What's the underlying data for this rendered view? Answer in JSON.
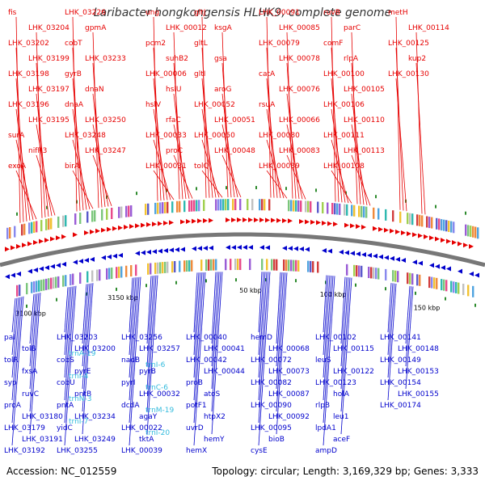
{
  "title": "Laribacter hongkongensis HLHK9, complete genome",
  "footer": {
    "accession": "Accession: NC_012559",
    "summary": "Topology: circular; Length: 3,169,329 bp; Genes: 3,333"
  },
  "colors": {
    "forward": "#e60000",
    "reverse": "#0000cc",
    "rna": "#33bbdd",
    "backbone": "#777777",
    "tick": "#2e8b2e"
  },
  "position_labels": [
    "3100 kbp",
    "3150 kbp",
    "50 kbp",
    "100 kbp",
    "150 kbp"
  ],
  "forward_genes": [
    "fis",
    "LHK_03204",
    "LHK_03202",
    "LHK_03199",
    "LHK_03198",
    "LHK_03197",
    "LHK_03196",
    "LHK_03195",
    "surA",
    "nifR3",
    "exoA",
    "LHK_03226",
    "gpmA",
    "cobT",
    "LHK_03233",
    "gyrB",
    "dnaN",
    "dnaA",
    "LHK_03250",
    "LHK_03248",
    "LHK_03247",
    "birA",
    "ung",
    "LHK_00012",
    "pcm2",
    "suhB2",
    "LHK_00006",
    "hslU",
    "hslV",
    "rfaC",
    "LHK_00033",
    "proC",
    "LHK_00031",
    "gltJ",
    "ksgA",
    "gltL",
    "gsa",
    "gltI",
    "aroG",
    "LHK_00052",
    "LHK_00051",
    "LHK_00050",
    "LHK_00048",
    "tolQ",
    "LHK_00091",
    "LHK_00085",
    "LHK_00079",
    "LHK_00078",
    "catA",
    "LHK_00076",
    "rsuA",
    "LHK_00066",
    "LHK_00080",
    "LHK_00083",
    "LHK_00089",
    "ruvB",
    "parC",
    "comF",
    "rlpA",
    "LHK_00100",
    "LHK_00105",
    "LHK_00106",
    "LHK_00110",
    "LHK_00111",
    "LHK_00113",
    "LHK_00108",
    "metH",
    "LHK_00114",
    "LHK_00125",
    "kup2",
    "LHK_00130"
  ],
  "reverse_genes": [
    "pal",
    "tolB",
    "tolR",
    "fxsA",
    "syp",
    "ruvC",
    "proA",
    "LHK_03180",
    "LHK_03179",
    "LHK_03191",
    "LHK_03192",
    "LHK_03203",
    "LHK_03200",
    "cobS",
    "pyrE",
    "cobU",
    "pntB",
    "pntA",
    "LHK_03234",
    "yidC",
    "LHK_03249",
    "LHK_03255",
    "LHK_03256",
    "LHK_03257",
    "nadB",
    "pyrB",
    "pyrI",
    "LHK_00032",
    "dcdA",
    "agaY",
    "LHK_00022",
    "tktA",
    "LHK_00039",
    "LHK_00040",
    "LHK_00041",
    "LHK_00042",
    "LHK_00044",
    "proB",
    "atoS",
    "potF1",
    "htpX2",
    "uvrD",
    "hemY",
    "hemX",
    "hemD",
    "LHK_00068",
    "LHK_00072",
    "LHK_00073",
    "LHK_00082",
    "LHK_00087",
    "LHK_00090",
    "LHK_00092",
    "LHK_00095",
    "bioB",
    "cysE",
    "LHK_00102",
    "LHK_00115",
    "leuS",
    "LHK_00122",
    "LHK_00123",
    "holA",
    "rlpB",
    "leu1",
    "lpdA1",
    "aceF",
    "ampD",
    "LHK_00141",
    "LHK_00148",
    "LHK_00149",
    "LHK_00153",
    "LHK_00154",
    "LHK_00155",
    "LHK_00174"
  ],
  "rna_genes": [
    "trnA-19",
    "trnI-6",
    "trnI-4",
    "trnC-6",
    "trnN-3",
    "trnM-19",
    "trnI-7",
    "trnI-20"
  ]
}
